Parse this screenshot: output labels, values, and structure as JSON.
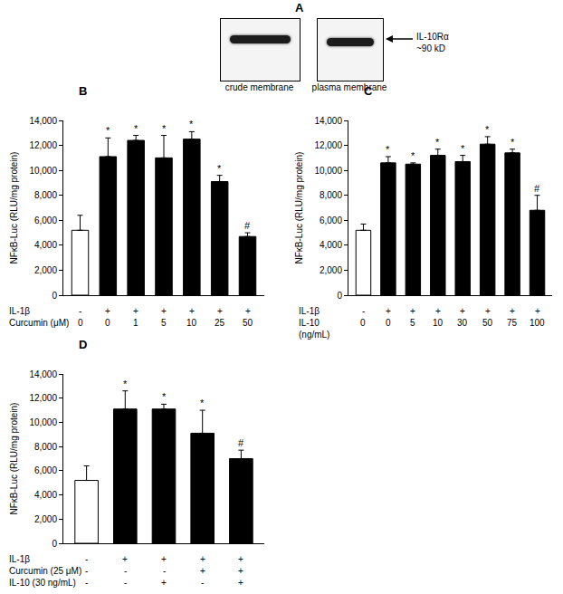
{
  "blot": {
    "label": "A",
    "lanes": [
      "crude membrane",
      "plasma membrane"
    ],
    "band": [
      "IL-10Rα",
      "~90 kD"
    ]
  },
  "chart_data": [
    {
      "type": "bar",
      "title": "B",
      "y_label": "NFκB-Luc (RLU/mg protein)",
      "conditions": [
        {
          "name": "IL-1β",
          "labels": [
            "-",
            "+",
            "+",
            "+",
            "+",
            "+",
            "+"
          ]
        },
        {
          "name": "Curcumin (μM)",
          "labels": [
            "0",
            "0",
            "1",
            "5",
            "10",
            "25",
            "50"
          ]
        }
      ],
      "values": [
        5200,
        11100,
        12400,
        11000,
        12500,
        9100,
        4700
      ],
      "errors": [
        1200,
        1500,
        400,
        1800,
        600,
        500,
        300
      ],
      "significance": [
        null,
        "*",
        "*",
        "*",
        "*",
        "*",
        "#"
      ],
      "colors": [
        "#ffffff",
        "#000000",
        "#000000",
        "#000000",
        "#000000",
        "#000000",
        "#000000"
      ],
      "ylim": [
        0,
        14000
      ],
      "yticks": [
        0,
        {
          "value": 2000,
          "label": "2,000"
        },
        {
          "value": 4000,
          "label": "4,000"
        },
        {
          "value": 6000,
          "label": "6,000"
        },
        {
          "value": 8000,
          "label": "8,000"
        },
        {
          "value": 10000,
          "label": "10,000"
        },
        {
          "value": 12000,
          "label": "12,000"
        },
        {
          "value": 14000,
          "label": "14,000"
        }
      ],
      "grid": false
    },
    {
      "type": "bar",
      "title": "C",
      "y_label": "NFκB-Luc (RLU/mg protein)",
      "conditions": [
        {
          "name": "IL-1β",
          "labels": [
            "-",
            "+",
            "+",
            "+",
            "+",
            "+",
            "+",
            "+"
          ]
        },
        {
          "name": "IL-10\n(ng/mL)",
          "labels": [
            "0",
            "0",
            "5",
            "10",
            "30",
            "50",
            "75",
            "100"
          ]
        }
      ],
      "values": [
        5200,
        10600,
        10500,
        11200,
        10700,
        12100,
        11400,
        6800
      ],
      "errors": [
        500,
        500,
        100,
        500,
        500,
        600,
        300,
        1200
      ],
      "significance": [
        null,
        "*",
        "*",
        "*",
        "*",
        "*",
        "*",
        "#"
      ],
      "colors": [
        "#ffffff",
        "#000000",
        "#000000",
        "#000000",
        "#000000",
        "#000000",
        "#000000",
        "#000000"
      ],
      "ylim": [
        0,
        14000
      ],
      "yticks": [
        0,
        {
          "value": 2000,
          "label": "2,000"
        },
        {
          "value": 4000,
          "label": "4,000"
        },
        {
          "value": 6000,
          "label": "6,000"
        },
        {
          "value": 8000,
          "label": "8,000"
        },
        {
          "value": 10000,
          "label": "10,000"
        },
        {
          "value": 12000,
          "label": "12,000"
        },
        {
          "value": 14000,
          "label": "14,000"
        }
      ],
      "grid": false
    },
    {
      "type": "bar",
      "title": "D",
      "y_label": "NFκB-Luc (RLU/mg protein)",
      "conditions": [
        {
          "name": "IL-1β",
          "labels": [
            "-",
            "+",
            "+",
            "+",
            "+"
          ]
        },
        {
          "name": "Curcumin (25 μM)",
          "labels": [
            "-",
            "-",
            "-",
            "+",
            "+"
          ]
        },
        {
          "name": "IL-10 (30 ng/mL)",
          "labels": [
            "-",
            "-",
            "+",
            "-",
            "+"
          ]
        }
      ],
      "values": [
        5200,
        11100,
        11100,
        9100,
        7000
      ],
      "errors": [
        1200,
        1500,
        400,
        1900,
        700
      ],
      "significance": [
        null,
        "*",
        "*",
        "*",
        "#"
      ],
      "colors": [
        "#ffffff",
        "#000000",
        "#000000",
        "#000000",
        "#000000"
      ],
      "ylim": [
        0,
        14000
      ],
      "yticks": [
        0,
        {
          "value": 2000,
          "label": "2,000"
        },
        {
          "value": 4000,
          "label": "4,000"
        },
        {
          "value": 6000,
          "label": "6,000"
        },
        {
          "value": 8000,
          "label": "8,000"
        },
        {
          "value": 10000,
          "label": "10,000"
        },
        {
          "value": 12000,
          "label": "12,000"
        },
        {
          "value": 14000,
          "label": "14,000"
        }
      ],
      "grid": false
    }
  ]
}
